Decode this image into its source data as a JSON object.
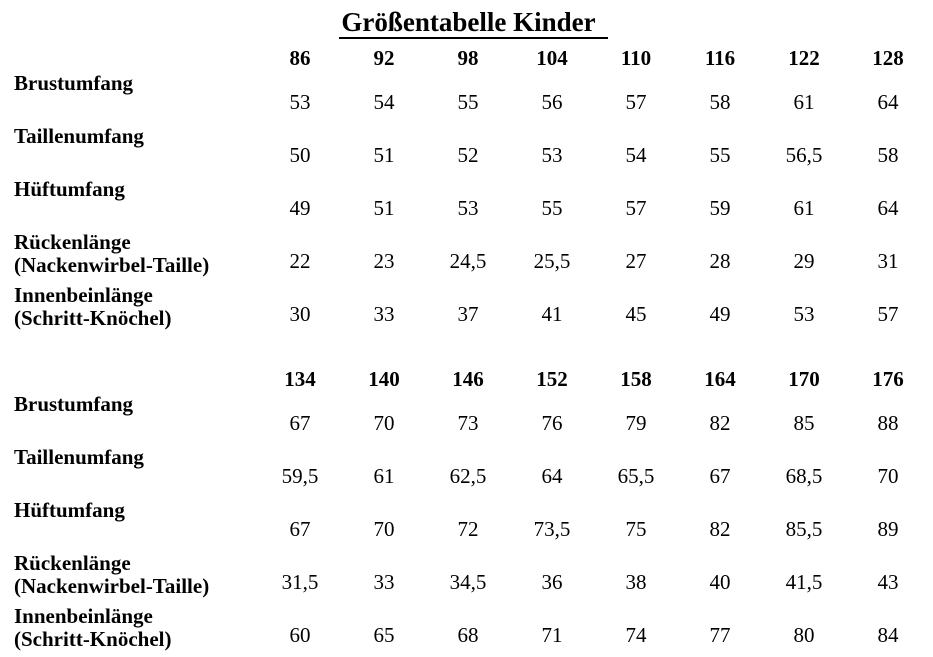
{
  "chart_data": {
    "type": "table",
    "title": "Größentabelle Kinder",
    "sections": [
      {
        "column_headers": [
          "86",
          "92",
          "98",
          "104",
          "110",
          "116",
          "122",
          "128"
        ],
        "rows": [
          {
            "label_lines": [
              "Brustumfang"
            ],
            "values": [
              "53",
              "54",
              "55",
              "56",
              "57",
              "58",
              "61",
              "64"
            ]
          },
          {
            "label_lines": [
              "Taillenumfang"
            ],
            "values": [
              "50",
              "51",
              "52",
              "53",
              "54",
              "55",
              "56,5",
              "58"
            ]
          },
          {
            "label_lines": [
              "Hüftumfang"
            ],
            "values": [
              "49",
              "51",
              "53",
              "55",
              "57",
              "59",
              "61",
              "64"
            ]
          },
          {
            "label_lines": [
              "Rückenlänge",
              "(Nackenwirbel-Taille)"
            ],
            "values": [
              "22",
              "23",
              "24,5",
              "25,5",
              "27",
              "28",
              "29",
              "31"
            ]
          },
          {
            "label_lines": [
              "Innenbeinlänge",
              "(Schritt-Knöchel)"
            ],
            "values": [
              "30",
              "33",
              "37",
              "41",
              "45",
              "49",
              "53",
              "57"
            ]
          }
        ]
      },
      {
        "column_headers": [
          "134",
          "140",
          "146",
          "152",
          "158",
          "164",
          "170",
          "176"
        ],
        "rows": [
          {
            "label_lines": [
              "Brustumfang"
            ],
            "values": [
              "67",
              "70",
              "73",
              "76",
              "79",
              "82",
              "85",
              "88"
            ]
          },
          {
            "label_lines": [
              "Taillenumfang"
            ],
            "values": [
              "59,5",
              "61",
              "62,5",
              "64",
              "65,5",
              "67",
              "68,5",
              "70"
            ]
          },
          {
            "label_lines": [
              "Hüftumfang"
            ],
            "values": [
              "67",
              "70",
              "72",
              "73,5",
              "75",
              "82",
              "85,5",
              "89"
            ]
          },
          {
            "label_lines": [
              "Rückenlänge",
              "(Nackenwirbel-Taille)"
            ],
            "values": [
              "31,5",
              "33",
              "34,5",
              "36",
              "38",
              "40",
              "41,5",
              "43"
            ]
          },
          {
            "label_lines": [
              "Innenbeinlänge",
              "(Schritt-Knöchel)"
            ],
            "values": [
              "60",
              "65",
              "68",
              "71",
              "74",
              "77",
              "80",
              "84"
            ]
          }
        ]
      }
    ],
    "text_color": "#000000",
    "background_color": "#ffffff"
  }
}
